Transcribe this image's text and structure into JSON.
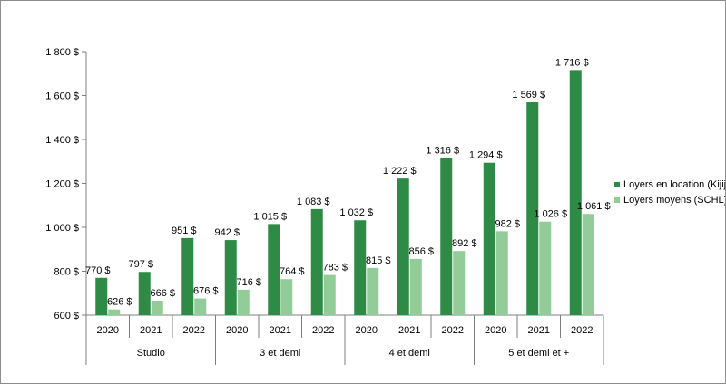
{
  "chart_data": {
    "type": "bar",
    "groups": [
      {
        "label": "Studio",
        "years": [
          "2020",
          "2021",
          "2022"
        ]
      },
      {
        "label": "3 et demi",
        "years": [
          "2020",
          "2021",
          "2022"
        ]
      },
      {
        "label": "4 et demi",
        "years": [
          "2020",
          "2021",
          "2022"
        ]
      },
      {
        "label": "5 et demi et +",
        "years": [
          "2020",
          "2021",
          "2022"
        ]
      }
    ],
    "series": [
      {
        "name": "Loyers en location (Kijiji)",
        "color": "#2e8b46",
        "values": [
          770,
          797,
          951,
          942,
          1015,
          1083,
          1032,
          1222,
          1316,
          1294,
          1569,
          1716
        ],
        "labels": [
          "770  $",
          "797  $",
          "951  $",
          "942  $",
          "1 015  $",
          "1 083  $",
          "1 032  $",
          "1 222  $",
          "1 316  $",
          "1 294  $",
          "1 569  $",
          "1 716  $"
        ]
      },
      {
        "name": "Loyers moyens (SCHL)",
        "color": "#92cc98",
        "values": [
          626,
          666,
          676,
          716,
          764,
          783,
          815,
          856,
          892,
          982,
          1026,
          1061
        ],
        "labels": [
          "626  $",
          "666  $",
          "676  $",
          "716  $",
          "764  $",
          "783  $",
          "815  $",
          "856  $",
          "892  $",
          "982  $",
          "1 026  $",
          "1 061  $"
        ]
      }
    ],
    "ylim": [
      600,
      1800
    ],
    "yticks": [
      600,
      800,
      1000,
      1200,
      1400,
      1600,
      1800
    ],
    "ytick_labels": [
      "600 $",
      "800 $",
      "1 000 $",
      "1 200 $",
      "1 400 $",
      "1 600 $",
      "1 800 $"
    ],
    "grid": false,
    "legend_position": "right",
    "title": "",
    "xlabel": "",
    "ylabel": ""
  }
}
